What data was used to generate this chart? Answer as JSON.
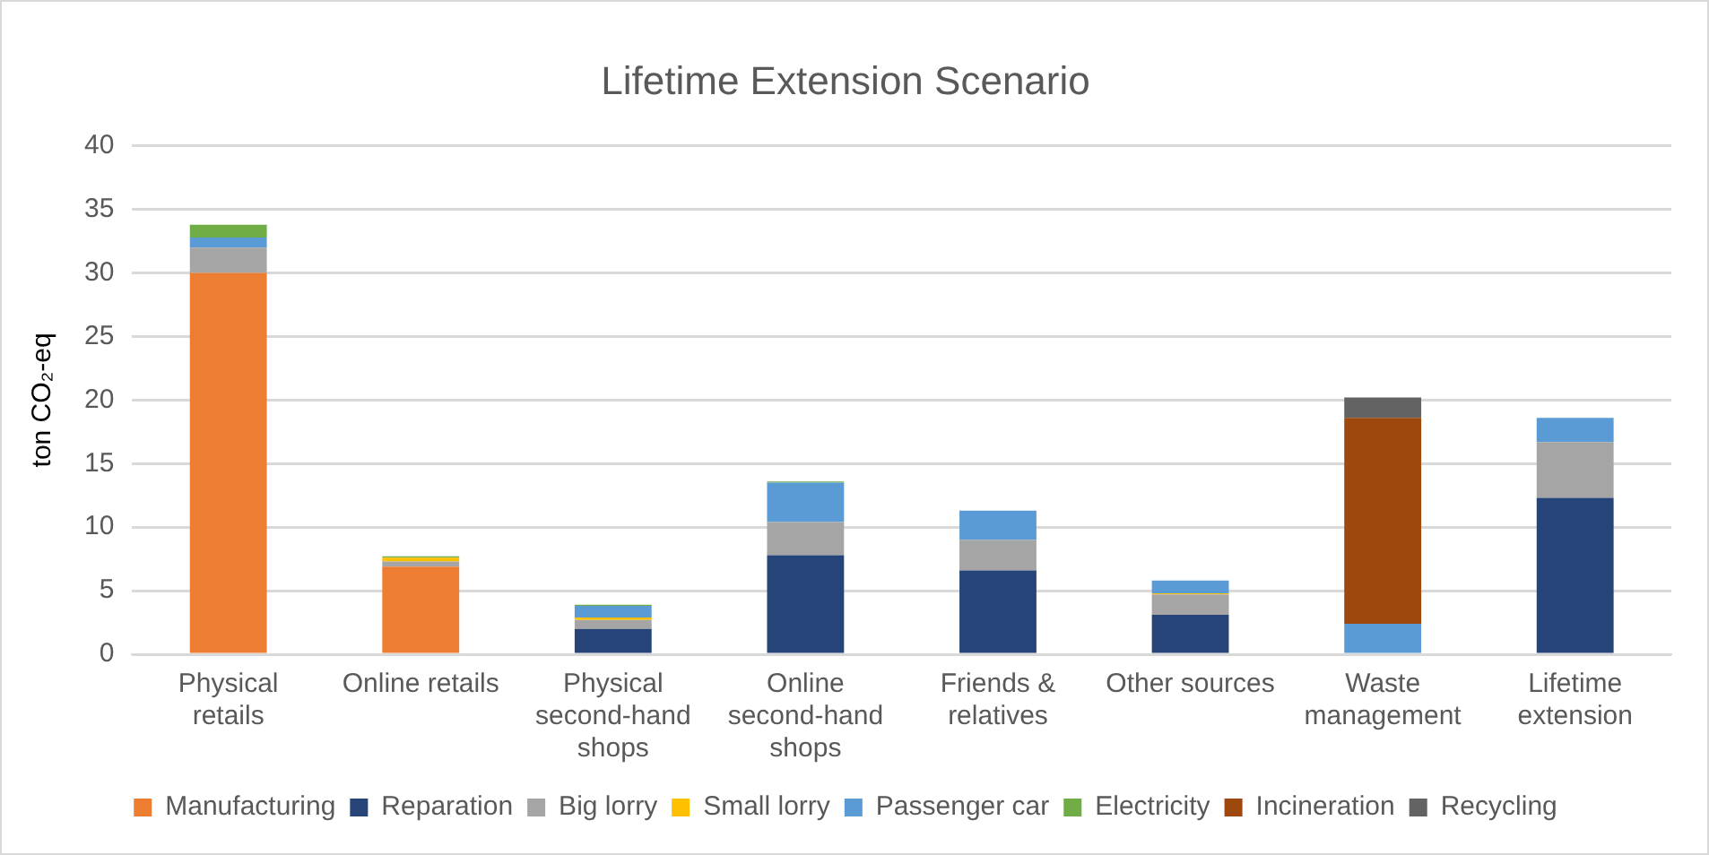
{
  "chart_data": {
    "type": "bar",
    "title": "Lifetime Extension Scenario",
    "ylabel": "ton CO₂-eq",
    "stacked": true,
    "grid": "y",
    "legend": "bottom",
    "categories": [
      "Physical retails",
      "Online retails",
      "Physical second-hand shops",
      "Online second-hand shops",
      "Friends & relatives",
      "Other sources",
      "Waste management",
      "Lifetime extension"
    ],
    "ylim": [
      0,
      40
    ],
    "yticks": [
      0,
      5,
      10,
      15,
      20,
      25,
      30,
      35,
      40
    ],
    "series": [
      {
        "name": "Manufacturing",
        "color": "#ed7d31",
        "values": [
          30,
          6.9,
          null,
          null,
          null,
          null,
          null,
          null
        ]
      },
      {
        "name": "Reparation",
        "color": "#264478",
        "values": [
          null,
          null,
          2.0,
          7.8,
          6.6,
          3.1,
          null,
          12.3
        ]
      },
      {
        "name": "Big lorry",
        "color": "#a5a5a5",
        "values": [
          2.0,
          0.4,
          0.7,
          2.6,
          2.4,
          1.6,
          null,
          4.4
        ]
      },
      {
        "name": "Small lorry",
        "color": "#ffc000",
        "values": [
          null,
          0.3,
          0.2,
          null,
          null,
          0.1,
          null,
          null
        ]
      },
      {
        "name": "Passenger car",
        "color": "#5b9bd5",
        "values": [
          0.8,
          null,
          0.9,
          3.1,
          2.3,
          1.0,
          2.4,
          1.9
        ]
      },
      {
        "name": "Electricity",
        "color": "#70ad47",
        "values": [
          1.0,
          0.1,
          0.1,
          0.1,
          null,
          null,
          null,
          null
        ]
      },
      {
        "name": "Incineration",
        "color": "#9e480e",
        "values": [
          null,
          null,
          null,
          null,
          null,
          null,
          16.2,
          null
        ]
      },
      {
        "name": "Recycling",
        "color": "#636363",
        "values": [
          null,
          null,
          null,
          null,
          null,
          null,
          1.6,
          null
        ]
      }
    ]
  }
}
